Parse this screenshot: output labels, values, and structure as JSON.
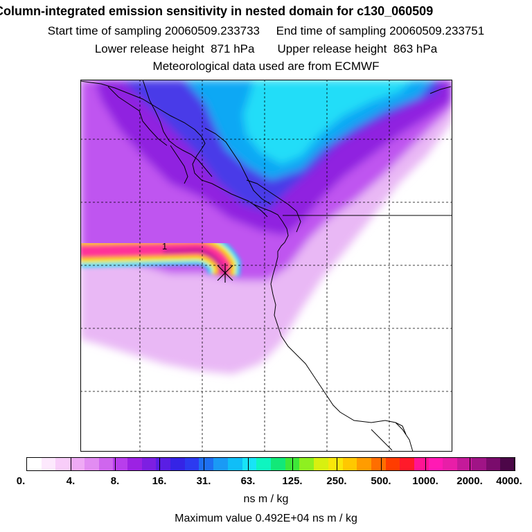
{
  "title": "Column-integrated emission sensitivity in nested domain for c130_060509",
  "sampling": {
    "start_label": "Start time of sampling",
    "start_value": "20060509.233733",
    "end_label": "End time of sampling",
    "end_value": "20060509.233751"
  },
  "release": {
    "lower_label": "Lower release height",
    "lower_value": "871 hPa",
    "upper_label": "Upper release height",
    "upper_value": "863 hPa"
  },
  "met_note": "Meteorological data used are from ECMWF",
  "map": {
    "release_marker_label": "1",
    "colors": {
      "background": "#ffffff",
      "light_violet": "#e9b8f5",
      "violet": "#bf55f0",
      "purple": "#9020e0",
      "blue": "#4a3ae8",
      "light_blue": "#0aa8f4",
      "cyan": "#22ddf8",
      "plume_core": "#ff1a8c",
      "plume_edge": "#ff3399"
    }
  },
  "colorbar": {
    "colors": [
      "#ffffff",
      "#fde9fd",
      "#f8cdf9",
      "#efaaf5",
      "#e28cf2",
      "#cf66ee",
      "#b83eec",
      "#9c22e3",
      "#7d1fe2",
      "#5a1ee4",
      "#3524e6",
      "#2c3af0",
      "#1e6ff2",
      "#1a9af5",
      "#10bef7",
      "#18e4f7",
      "#0ef5c0",
      "#12e878",
      "#3ee838",
      "#8ef020",
      "#d8f010",
      "#fae60a",
      "#ffc800",
      "#ff9c00",
      "#ff6e00",
      "#ff3c00",
      "#ff1a2a",
      "#ff1494",
      "#ff1ab4",
      "#e81ea8",
      "#c41a9a",
      "#a01486",
      "#7a0c6c",
      "#4c0648"
    ],
    "ticks": [
      "0.",
      "4.",
      "8.",
      "16.",
      "31.",
      "63.",
      "125.",
      "250.",
      "500.",
      "1000.",
      "2000.",
      "4000."
    ],
    "units": "ns m / kg"
  },
  "max_value": {
    "label": "Maximum value",
    "value": "0.492E+04 ns m / kg"
  }
}
